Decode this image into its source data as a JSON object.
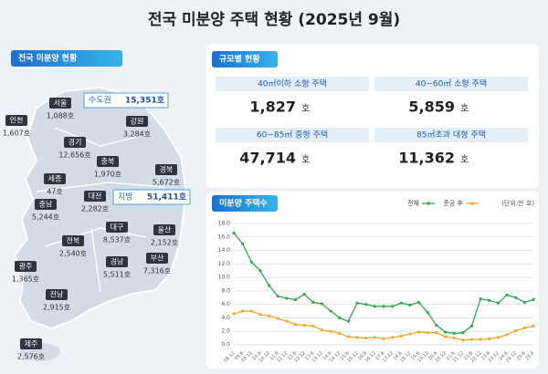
{
  "header": {
    "title": "전국 미분양 주택 현황  (2025년 9월)"
  },
  "map": {
    "badge": "전국 미분양 현황",
    "callouts": [
      {
        "name": "수도권",
        "value": "15,351호"
      },
      {
        "name": "지방",
        "value": "51,411호"
      }
    ],
    "regions": [
      {
        "name": "인천",
        "value": "1,607호"
      },
      {
        "name": "서울",
        "value": "1,088호"
      },
      {
        "name": "강원",
        "value": "3,284호"
      },
      {
        "name": "경기",
        "value": "12,656호"
      },
      {
        "name": "충북",
        "value": "1,970호"
      },
      {
        "name": "경북",
        "value": "5,672호"
      },
      {
        "name": "세종",
        "value": "47호"
      },
      {
        "name": "충남",
        "value": "5,244호"
      },
      {
        "name": "대전",
        "value": "2,282호"
      },
      {
        "name": "대구",
        "value": "8,537호"
      },
      {
        "name": "울산",
        "value": "2,152호"
      },
      {
        "name": "전북",
        "value": "2,540호"
      },
      {
        "name": "경남",
        "value": "5,511호"
      },
      {
        "name": "부산",
        "value": "7,316호"
      },
      {
        "name": "광주",
        "value": "1,365호"
      },
      {
        "name": "전남",
        "value": "2,915호"
      },
      {
        "name": "제주",
        "value": "2,576호"
      }
    ]
  },
  "size_table": {
    "badge": "규모별 현황",
    "cells": [
      {
        "label": "40㎡이하 소형 주택",
        "value": "1,827",
        "unit": "호"
      },
      {
        "label": "40~60㎡ 소형 주택",
        "value": "5,859",
        "unit": "호"
      },
      {
        "label": "60~85㎡ 중형 주택",
        "value": "47,714",
        "unit": "호"
      },
      {
        "label": "85㎡초과 대형 주택",
        "value": "11,362",
        "unit": "호"
      }
    ]
  },
  "chart_data": {
    "type": "line",
    "title": "미분양 주택수",
    "unit_note": "(단위:만 호)",
    "categories": [
      "08.12",
      "09.6",
      "09.12",
      "10.6",
      "10.12",
      "11.6",
      "11.12",
      "12.6",
      "12.12",
      "13.6",
      "13.12",
      "14.6",
      "14.12",
      "15.6",
      "15.12",
      "16.6",
      "16.12",
      "17.6",
      "17.12",
      "18.6",
      "18.12",
      "19.6",
      "19.12",
      "20.6",
      "20.12",
      "21.6",
      "21.12",
      "22.6",
      "22.12",
      "23.6",
      "23.12",
      "24.6",
      "24.12",
      "25.6",
      "25.9"
    ],
    "series": [
      {
        "name": "전체",
        "color": "#2eaa4f",
        "values": [
          16.6,
          15.0,
          12.3,
          11.0,
          8.8,
          7.2,
          6.9,
          6.7,
          7.5,
          6.3,
          6.1,
          5.0,
          4.0,
          3.5,
          6.2,
          6.0,
          5.7,
          5.7,
          5.7,
          6.2,
          5.9,
          6.3,
          4.8,
          2.9,
          1.9,
          1.7,
          1.8,
          2.8,
          6.8,
          6.6,
          6.2,
          7.4,
          7.0,
          6.3,
          6.7
        ]
      },
      {
        "name": "준공 후",
        "color": "#f0a928",
        "values": [
          4.6,
          5.0,
          5.0,
          4.5,
          4.3,
          3.9,
          3.5,
          3.0,
          2.9,
          2.8,
          2.2,
          2.0,
          1.7,
          1.2,
          1.1,
          1.0,
          1.1,
          0.9,
          1.1,
          1.3,
          1.6,
          1.9,
          1.8,
          1.8,
          1.2,
          1.0,
          0.7,
          0.8,
          0.8,
          0.9,
          1.1,
          1.5,
          2.1,
          2.5,
          2.8
        ]
      }
    ],
    "ylim": [
      0,
      18
    ],
    "yticks": [
      {
        "value": 0,
        "label": "0.0"
      },
      {
        "value": 2,
        "label": "2.0"
      },
      {
        "value": 4,
        "label": "4.0"
      },
      {
        "value": 6,
        "label": "6.0"
      },
      {
        "value": 8,
        "label": "8.0"
      },
      {
        "value": 10,
        "label": "10.0"
      },
      {
        "value": 12,
        "label": "12.0"
      },
      {
        "value": 14,
        "label": "14.0"
      },
      {
        "value": 16,
        "label": "16.0"
      },
      {
        "value": 18,
        "label": "18.0"
      }
    ],
    "grid": true
  }
}
